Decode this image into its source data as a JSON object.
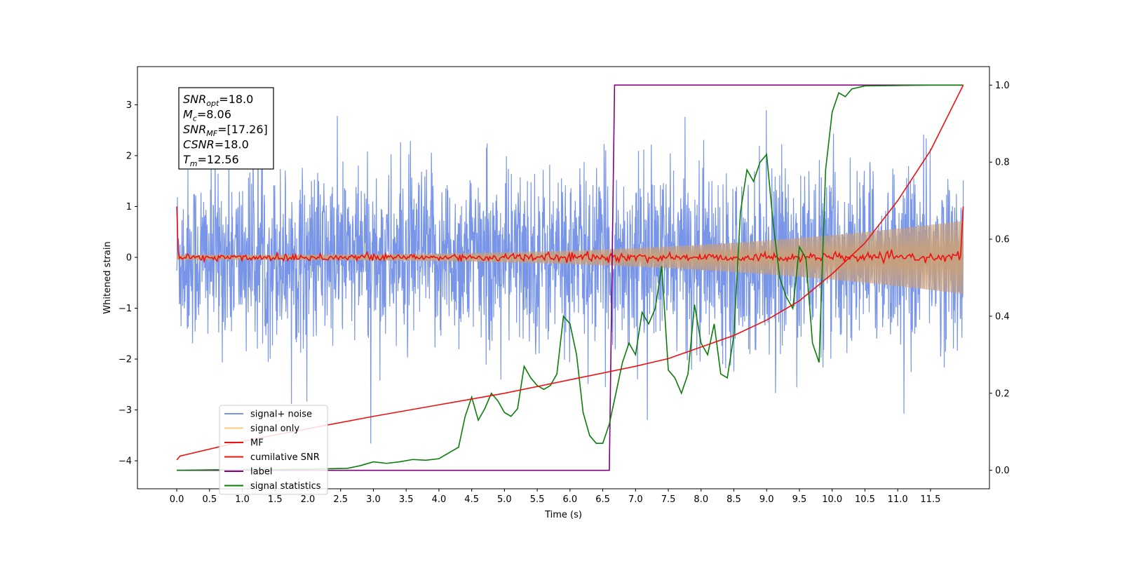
{
  "chart_data": {
    "type": "line",
    "xlabel": "Time (s)",
    "ylabel": "Whitened strain",
    "xlim": [
      -0.6,
      12.4
    ],
    "ylim": [
      -4.55,
      3.75
    ],
    "y2lim": [
      -0.048,
      1.048
    ],
    "xticks": [
      "0.0",
      "0.5",
      "1.0",
      "1.5",
      "2.0",
      "2.5",
      "3.0",
      "3.5",
      "4.0",
      "4.5",
      "5.0",
      "5.5",
      "6.0",
      "6.5",
      "7.0",
      "7.5",
      "8.0",
      "8.5",
      "9.0",
      "9.5",
      "10.0",
      "10.5",
      "11.0",
      "11.5"
    ],
    "yticks": [
      "3",
      "2",
      "1",
      "0",
      "−1",
      "−2",
      "−3",
      "−4"
    ],
    "y2ticks": [
      "0.0",
      "0.2",
      "0.4",
      "0.6",
      "0.8",
      "1.0"
    ],
    "legend_position": "lower-left",
    "annotations": [
      {
        "base": "SNR",
        "sub": "opt",
        "value": "=18.0"
      },
      {
        "base": "M",
        "sub": "c",
        "value": "=8.06"
      },
      {
        "base": "SNR",
        "sub": "MF",
        "value": "=[17.26]"
      },
      {
        "base": "CSNR",
        "sub": "",
        "value": "=18.0"
      },
      {
        "base": "T",
        "sub": "m",
        "value": "=12.56"
      }
    ],
    "series": [
      {
        "name": "signal+ noise",
        "color": "#7895e8",
        "axis": "left",
        "style": "noise",
        "std": 0.85,
        "x_range": [
          0,
          12
        ]
      },
      {
        "name": "signal only",
        "color": "#fcc97a",
        "axis": "left",
        "style": "chirp",
        "amp_start": 0.05,
        "amp_end": 0.72,
        "x_range": [
          0,
          12
        ]
      },
      {
        "name": "MF",
        "color": "#ee1111",
        "axis": "left",
        "style": "mf",
        "x_range": [
          0,
          12
        ]
      },
      {
        "name": "cumilative SNR",
        "color": "#ee1111",
        "axis": "right",
        "x": [
          0,
          0.05,
          1,
          2,
          3,
          4,
          5,
          6,
          7,
          7.5,
          8,
          8.5,
          9,
          9.5,
          10,
          10.5,
          11,
          11.5,
          12
        ],
        "y": [
          0.027,
          0.037,
          0.075,
          0.108,
          0.14,
          0.17,
          0.2,
          0.235,
          0.27,
          0.29,
          0.32,
          0.35,
          0.39,
          0.44,
          0.51,
          0.59,
          0.7,
          0.83,
          1.0
        ]
      },
      {
        "name": "label",
        "color": "#800080",
        "axis": "right",
        "x": [
          0,
          6.6,
          6.68,
          12
        ],
        "y": [
          0,
          0,
          1,
          1
        ]
      },
      {
        "name": "signal statistics",
        "color": "#0a7d0a",
        "axis": "right",
        "x": [
          0,
          0.5,
          1,
          1.5,
          2,
          2.3,
          2.6,
          2.8,
          3.0,
          3.2,
          3.4,
          3.6,
          3.8,
          4.0,
          4.2,
          4.3,
          4.4,
          4.5,
          4.6,
          4.7,
          4.8,
          4.9,
          5.0,
          5.1,
          5.2,
          5.3,
          5.4,
          5.5,
          5.6,
          5.7,
          5.8,
          5.9,
          6.0,
          6.1,
          6.2,
          6.3,
          6.4,
          6.5,
          6.6,
          6.7,
          6.8,
          6.9,
          7.0,
          7.1,
          7.2,
          7.3,
          7.4,
          7.5,
          7.6,
          7.7,
          7.8,
          7.9,
          8.0,
          8.1,
          8.2,
          8.3,
          8.4,
          8.5,
          8.6,
          8.7,
          8.8,
          8.9,
          9.0,
          9.1,
          9.2,
          9.3,
          9.4,
          9.5,
          9.6,
          9.7,
          9.8,
          9.9,
          10.0,
          10.1,
          10.2,
          10.3,
          10.5,
          11,
          11.5,
          12
        ],
        "y": [
          0.0,
          0.001,
          0.002,
          0.002,
          0.003,
          0.004,
          0.005,
          0.012,
          0.022,
          0.018,
          0.022,
          0.028,
          0.026,
          0.03,
          0.05,
          0.06,
          0.14,
          0.19,
          0.13,
          0.16,
          0.2,
          0.18,
          0.15,
          0.14,
          0.16,
          0.27,
          0.24,
          0.22,
          0.21,
          0.22,
          0.25,
          0.4,
          0.38,
          0.3,
          0.15,
          0.09,
          0.07,
          0.07,
          0.12,
          0.2,
          0.28,
          0.33,
          0.3,
          0.41,
          0.38,
          0.42,
          0.53,
          0.26,
          0.24,
          0.2,
          0.25,
          0.43,
          0.33,
          0.3,
          0.38,
          0.25,
          0.24,
          0.35,
          0.67,
          0.78,
          0.75,
          0.8,
          0.82,
          0.64,
          0.5,
          0.45,
          0.42,
          0.58,
          0.55,
          0.33,
          0.28,
          0.78,
          0.93,
          0.98,
          0.97,
          0.99,
          0.998,
          0.999,
          1.0,
          1.0
        ]
      }
    ]
  }
}
